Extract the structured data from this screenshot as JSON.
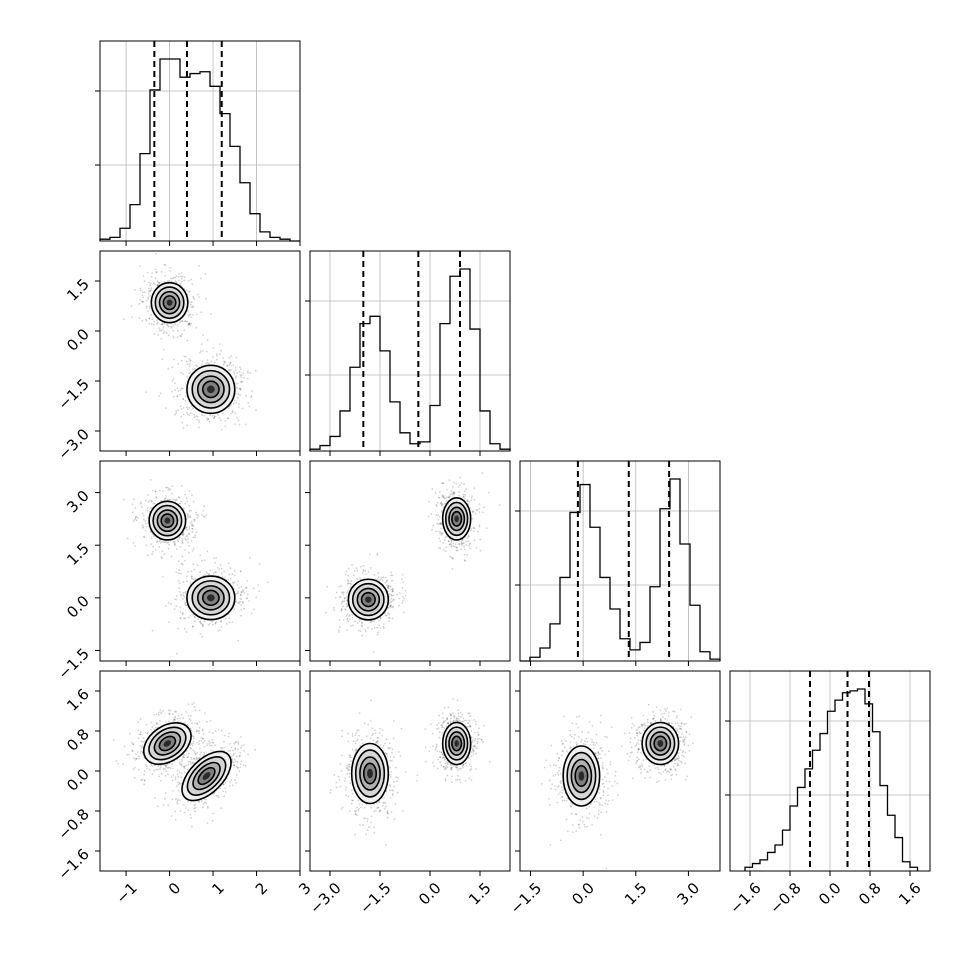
{
  "chart_data": {
    "type": "corner",
    "title": "",
    "ndim": 4,
    "parameters": [
      {
        "range": [
          -1.6,
          3.0
        ],
        "ticks": [
          -1,
          0,
          1,
          2,
          3
        ],
        "tick_labels": [
          "−1",
          "0",
          "1",
          "2",
          "3"
        ],
        "quantiles": [
          -0.35,
          0.4,
          1.2
        ],
        "hist_bins": [
          -1.6,
          -1.37,
          -1.14,
          -0.91,
          -0.68,
          -0.45,
          -0.22,
          0.01,
          0.24,
          0.47,
          0.7,
          0.93,
          1.16,
          1.39,
          1.62,
          1.85,
          2.08,
          2.31,
          2.54,
          2.77,
          3.0
        ],
        "hist_counts": [
          0.01,
          0.02,
          0.07,
          0.2,
          0.48,
          0.83,
          1.0,
          1.0,
          0.9,
          0.92,
          0.93,
          0.85,
          0.7,
          0.52,
          0.32,
          0.15,
          0.05,
          0.02,
          0.01,
          0.0
        ]
      },
      {
        "range": [
          -3.6,
          2.4
        ],
        "ticks": [
          -3.0,
          -1.5,
          0.0,
          1.5
        ],
        "tick_labels": [
          "−3.0",
          "−1.5",
          "0.0",
          "1.5"
        ],
        "quantiles": [
          -2.0,
          -0.35,
          0.9
        ],
        "hist_bins": [
          -3.6,
          -3.3,
          -3.0,
          -2.7,
          -2.4,
          -2.1,
          -1.8,
          -1.5,
          -1.2,
          -0.9,
          -0.6,
          -0.3,
          0.0,
          0.3,
          0.6,
          0.9,
          1.2,
          1.5,
          1.8,
          2.1,
          2.4
        ],
        "hist_counts": [
          0.01,
          0.03,
          0.08,
          0.22,
          0.46,
          0.7,
          0.74,
          0.55,
          0.27,
          0.1,
          0.04,
          0.05,
          0.25,
          0.7,
          0.96,
          1.0,
          0.67,
          0.22,
          0.04,
          0.01
        ]
      },
      {
        "range": [
          -1.8,
          3.9
        ],
        "ticks": [
          -1.5,
          0.0,
          1.5,
          3.0
        ],
        "tick_labels": [
          "−1.5",
          "0.0",
          "1.5",
          "3.0"
        ],
        "quantiles": [
          -0.15,
          1.3,
          2.45
        ],
        "hist_bins": [
          -1.8,
          -1.515,
          -1.23,
          -0.945,
          -0.66,
          -0.375,
          -0.09,
          0.195,
          0.48,
          0.765,
          1.05,
          1.335,
          1.62,
          1.905,
          2.19,
          2.475,
          2.76,
          3.045,
          3.33,
          3.615,
          3.9
        ],
        "hist_counts": [
          0.0,
          0.02,
          0.07,
          0.2,
          0.45,
          0.8,
          0.95,
          0.72,
          0.45,
          0.28,
          0.12,
          0.06,
          0.1,
          0.4,
          0.82,
          0.98,
          0.63,
          0.3,
          0.05,
          0.01
        ]
      },
      {
        "range": [
          -2.0,
          2.0
        ],
        "ticks": [
          -1.6,
          -0.8,
          0.0,
          0.8,
          1.6
        ],
        "tick_labels": [
          "−1.6",
          "−0.8",
          "0.0",
          "0.8",
          "1.6"
        ],
        "quantiles": [
          -0.4,
          0.35,
          0.78
        ],
        "hist_bins": [
          -1.7,
          -1.55,
          -1.4,
          -1.25,
          -1.1,
          -0.95,
          -0.8,
          -0.65,
          -0.5,
          -0.35,
          -0.2,
          -0.05,
          0.1,
          0.25,
          0.4,
          0.55,
          0.7,
          0.85,
          1.0,
          1.15,
          1.3,
          1.45,
          1.6,
          1.75
        ],
        "hist_counts": [
          0.02,
          0.04,
          0.06,
          0.1,
          0.14,
          0.22,
          0.35,
          0.45,
          0.55,
          0.65,
          0.74,
          0.86,
          0.92,
          0.96,
          0.97,
          0.98,
          0.9,
          0.75,
          0.46,
          0.3,
          0.18,
          0.05,
          0.02
        ]
      }
    ],
    "pairs": [
      {
        "row": 1,
        "col": 0,
        "clusters": [
          {
            "center": [
              0.0,
              0.85
            ],
            "spread": [
              0.42,
              0.6
            ],
            "tilt": 0
          },
          {
            "center": [
              0.95,
              -1.75
            ],
            "spread": [
              0.55,
              0.72
            ],
            "tilt": 0
          }
        ]
      },
      {
        "row": 2,
        "col": 0,
        "clusters": [
          {
            "center": [
              -0.05,
              2.2
            ],
            "spread": [
              0.42,
              0.55
            ],
            "tilt": 0
          },
          {
            "center": [
              0.95,
              0.0
            ],
            "spread": [
              0.55,
              0.62
            ],
            "tilt": 0
          }
        ]
      },
      {
        "row": 2,
        "col": 1,
        "clusters": [
          {
            "center": [
              -1.85,
              -0.05
            ],
            "spread": [
              0.6,
              0.58
            ],
            "tilt": 0
          },
          {
            "center": [
              0.8,
              2.25
            ],
            "spread": [
              0.42,
              0.6
            ],
            "tilt": 0
          }
        ]
      },
      {
        "row": 3,
        "col": 0,
        "clusters": [
          {
            "center": [
              -0.05,
              0.55
            ],
            "spread": [
              0.6,
              0.35
            ],
            "tilt": -35
          },
          {
            "center": [
              0.85,
              -0.1
            ],
            "spread": [
              0.7,
              0.33
            ],
            "tilt": -45
          }
        ]
      },
      {
        "row": 3,
        "col": 1,
        "clusters": [
          {
            "center": [
              -1.8,
              -0.05
            ],
            "spread": [
              0.55,
              0.6
            ],
            "tilt": 0
          },
          {
            "center": [
              0.8,
              0.55
            ],
            "spread": [
              0.42,
              0.42
            ],
            "tilt": 0
          }
        ]
      },
      {
        "row": 3,
        "col": 2,
        "clusters": [
          {
            "center": [
              -0.05,
              -0.1
            ],
            "spread": [
              0.52,
              0.6
            ],
            "tilt": 0
          },
          {
            "center": [
              2.2,
              0.55
            ],
            "spread": [
              0.52,
              0.42
            ],
            "tilt": 0
          }
        ]
      }
    ]
  }
}
